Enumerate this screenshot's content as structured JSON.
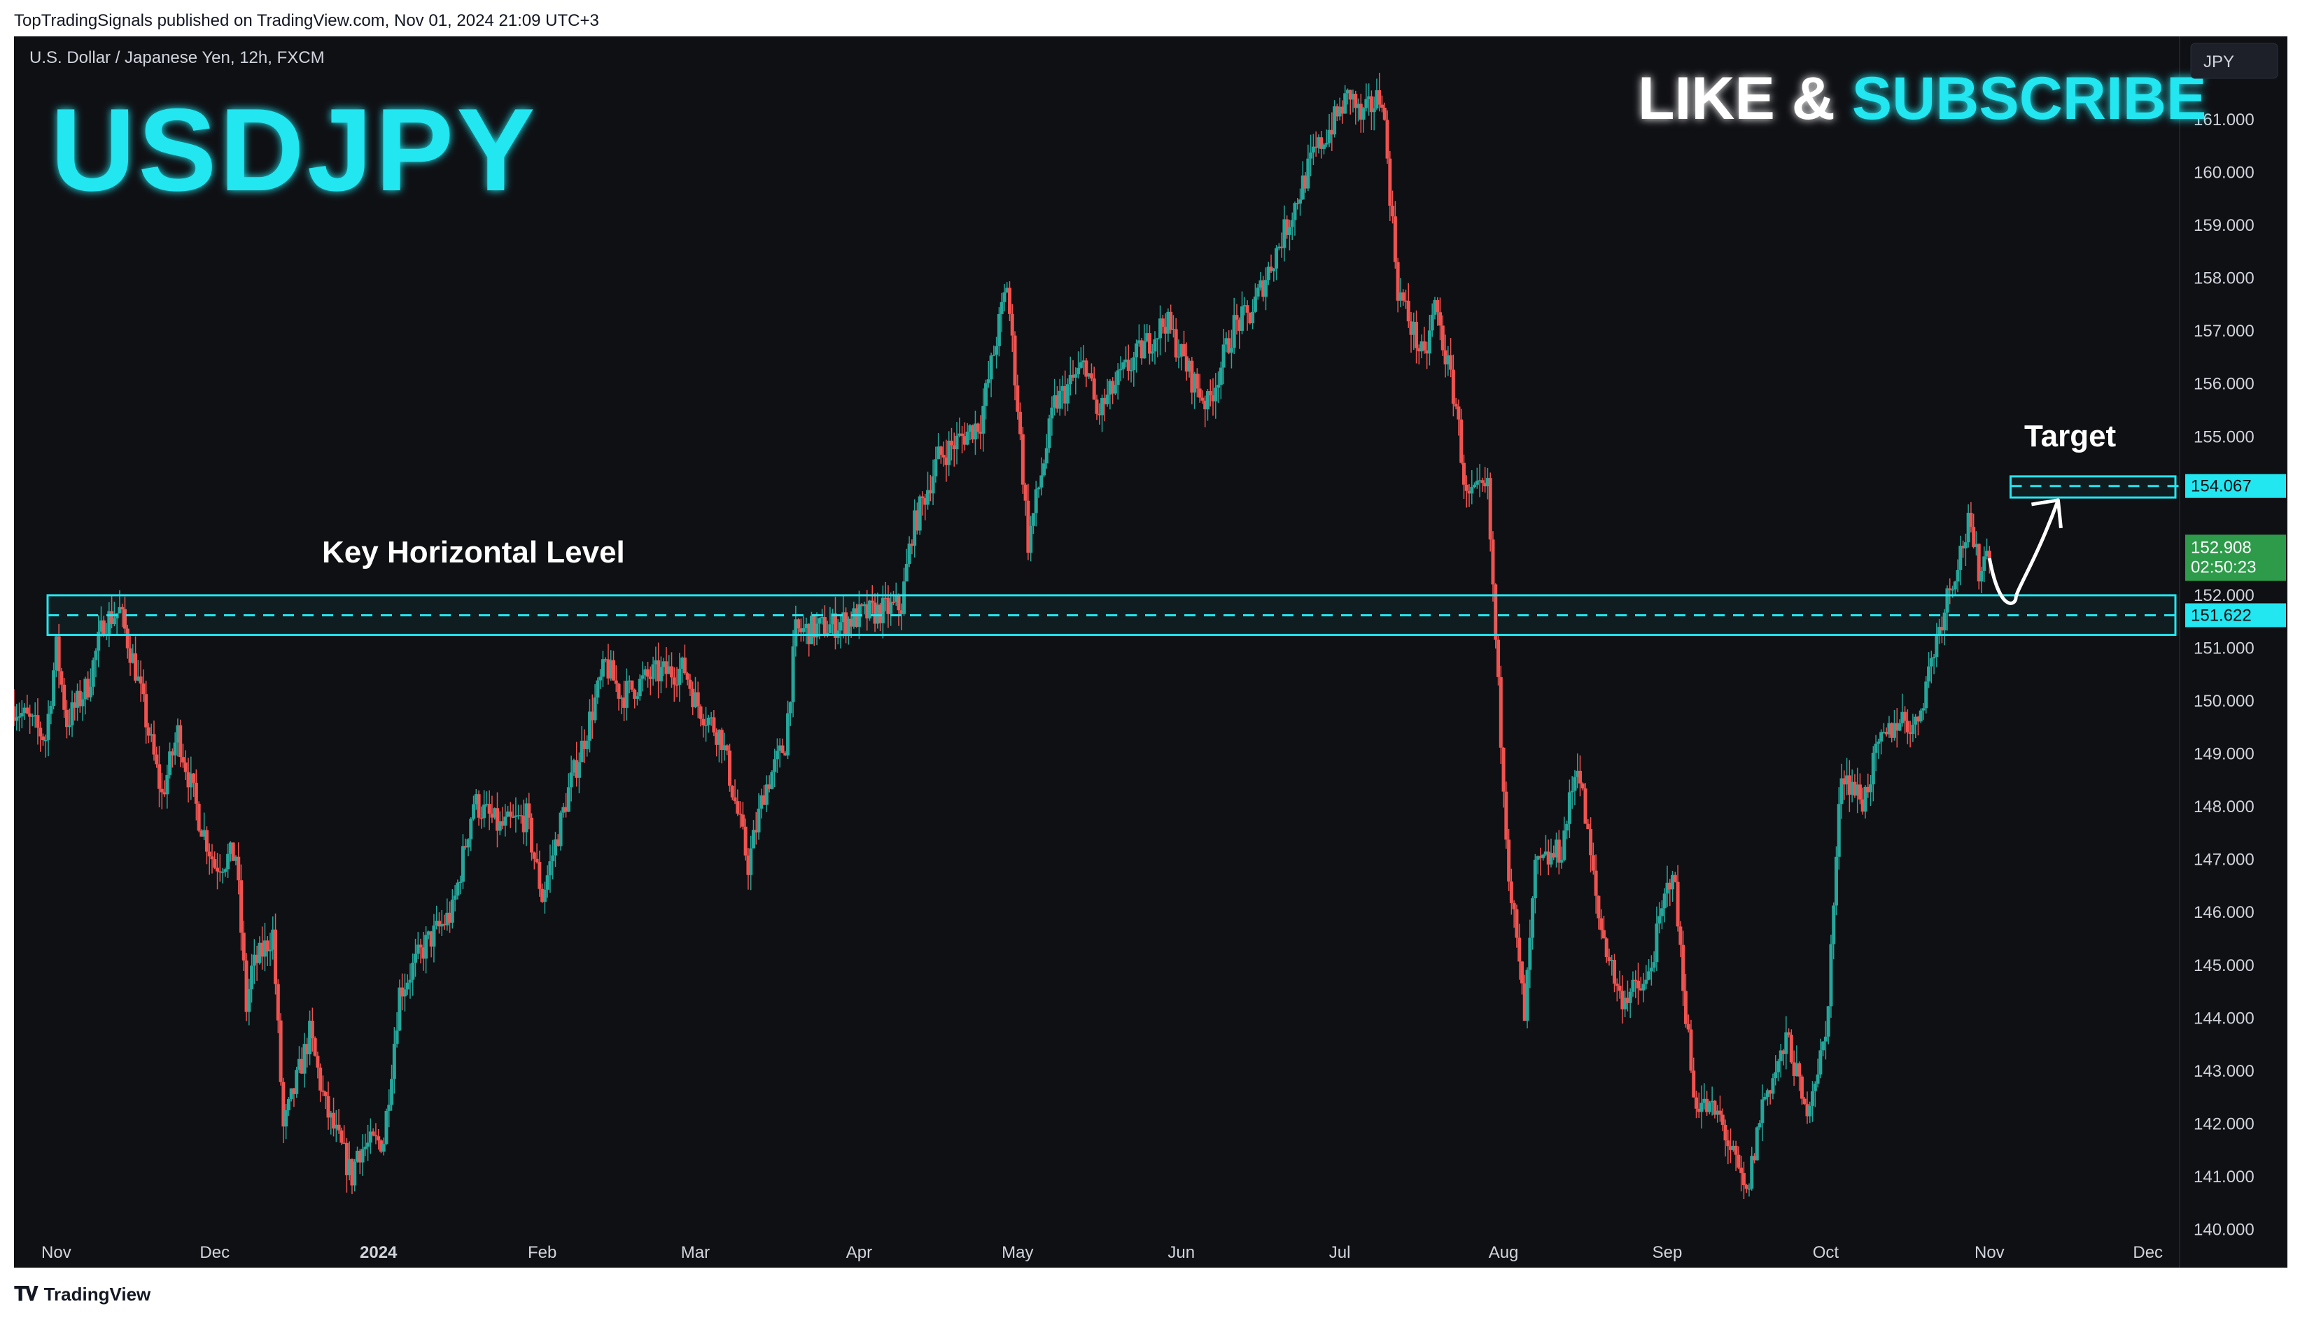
{
  "page": {
    "published_line": "TopTradingSignals published on TradingView.com, Nov 01, 2024 21:09 UTC+3",
    "footer_brand": "TradingView"
  },
  "chart_header": {
    "symbol_description": "U.S. Dollar / Japanese Yen, 12h, FXCM",
    "big_title": "USDJPY",
    "cta_part1": "LIKE & ",
    "cta_part2": "SUBSCRIBE",
    "currency_badge": "JPY"
  },
  "annotations": {
    "key_level_label": "Key Horizontal Level",
    "target_label": "Target"
  },
  "price_tags": {
    "current_price": "152.908",
    "countdown": "02:50:23",
    "target_price": "154.067",
    "key_level_price": "151.622"
  },
  "colors": {
    "background": "#0f1014",
    "up": "#26a69a",
    "down": "#ef5350",
    "accent_cyan": "#22e6f0",
    "current_price_tag": "#2e9b4a"
  },
  "chart_data": {
    "type": "candlestick",
    "title": "USDJPY",
    "subtitle": "U.S. Dollar / Japanese Yen, 12h, FXCM",
    "ylim": [
      139.6,
      162.0
    ],
    "y_ticks": [
      140,
      141,
      142,
      143,
      144,
      145,
      146,
      147,
      148,
      149,
      150,
      151,
      152,
      155,
      156,
      157,
      158,
      159,
      160,
      161
    ],
    "y_tick_labels": [
      "140.000",
      "141.000",
      "142.000",
      "143.000",
      "144.000",
      "145.000",
      "146.000",
      "147.000",
      "148.000",
      "149.000",
      "150.000",
      "151.000",
      "152.000",
      "155.000",
      "156.000",
      "157.000",
      "158.000",
      "159.000",
      "160.000",
      "161.000"
    ],
    "x_ticks": [
      "Nov",
      "Dec",
      "2024",
      "Feb",
      "Mar",
      "Apr",
      "May",
      "Jun",
      "Jul",
      "Aug",
      "Sep",
      "Oct",
      "Nov",
      "Dec"
    ],
    "x_tick_bold": [
      false,
      false,
      true,
      false,
      false,
      false,
      false,
      false,
      false,
      false,
      false,
      false,
      false,
      false
    ],
    "x_range": [
      "2023-10-24",
      "2024-12-07"
    ],
    "x_tick_dates": [
      "2023-11-01",
      "2023-12-01",
      "2024-01-01",
      "2024-02-01",
      "2024-03-01",
      "2024-04-01",
      "2024-05-01",
      "2024-06-01",
      "2024-07-01",
      "2024-08-01",
      "2024-09-01",
      "2024-10-01",
      "2024-11-01",
      "2024-12-01"
    ],
    "key_level": 151.622,
    "key_zone": [
      151.25,
      152.0
    ],
    "target_level": 154.067,
    "target_zone": [
      153.85,
      154.25
    ],
    "last_price": 152.908,
    "projection": [
      {
        "date": "2024-11-01",
        "price": 152.7
      },
      {
        "date": "2024-11-03",
        "price": 151.9
      },
      {
        "date": "2024-11-06",
        "price": 151.95
      },
      {
        "date": "2024-11-10",
        "price": 152.7
      },
      {
        "date": "2024-11-14",
        "price": 153.8
      }
    ],
    "close_path": [
      {
        "date": "2023-10-24",
        "close": 149.9
      },
      {
        "date": "2023-10-30",
        "close": 149.3
      },
      {
        "date": "2023-11-01",
        "close": 151.0
      },
      {
        "date": "2023-11-03",
        "close": 149.6
      },
      {
        "date": "2023-11-07",
        "close": 150.3
      },
      {
        "date": "2023-11-10",
        "close": 151.5
      },
      {
        "date": "2023-11-13",
        "close": 151.7
      },
      {
        "date": "2023-11-16",
        "close": 150.6
      },
      {
        "date": "2023-11-21",
        "close": 148.2
      },
      {
        "date": "2023-11-24",
        "close": 149.4
      },
      {
        "date": "2023-11-28",
        "close": 147.8
      },
      {
        "date": "2023-12-01",
        "close": 146.9
      },
      {
        "date": "2023-12-05",
        "close": 147.1
      },
      {
        "date": "2023-12-07",
        "close": 144.2
      },
      {
        "date": "2023-12-08",
        "close": 144.9
      },
      {
        "date": "2023-12-12",
        "close": 145.6
      },
      {
        "date": "2023-12-14",
        "close": 141.9
      },
      {
        "date": "2023-12-19",
        "close": 143.7
      },
      {
        "date": "2023-12-22",
        "close": 142.3
      },
      {
        "date": "2023-12-27",
        "close": 141.0
      },
      {
        "date": "2023-12-28",
        "close": 141.5
      },
      {
        "date": "2024-01-02",
        "close": 141.7
      },
      {
        "date": "2024-01-05",
        "close": 144.5
      },
      {
        "date": "2024-01-10",
        "close": 145.4
      },
      {
        "date": "2024-01-15",
        "close": 146.0
      },
      {
        "date": "2024-01-19",
        "close": 148.1
      },
      {
        "date": "2024-01-24",
        "close": 147.6
      },
      {
        "date": "2024-01-29",
        "close": 147.8
      },
      {
        "date": "2024-02-01",
        "close": 146.3
      },
      {
        "date": "2024-02-06",
        "close": 148.3
      },
      {
        "date": "2024-02-09",
        "close": 149.3
      },
      {
        "date": "2024-02-13",
        "close": 150.7
      },
      {
        "date": "2024-02-16",
        "close": 150.1
      },
      {
        "date": "2024-02-22",
        "close": 150.5
      },
      {
        "date": "2024-02-28",
        "close": 150.6
      },
      {
        "date": "2024-03-01",
        "close": 150.0
      },
      {
        "date": "2024-03-06",
        "close": 149.3
      },
      {
        "date": "2024-03-11",
        "close": 146.9
      },
      {
        "date": "2024-03-14",
        "close": 148.3
      },
      {
        "date": "2024-03-18",
        "close": 149.2
      },
      {
        "date": "2024-03-20",
        "close": 151.3
      },
      {
        "date": "2024-03-26",
        "close": 151.4
      },
      {
        "date": "2024-04-01",
        "close": 151.6
      },
      {
        "date": "2024-04-09",
        "close": 151.8
      },
      {
        "date": "2024-04-11",
        "close": 153.2
      },
      {
        "date": "2024-04-16",
        "close": 154.6
      },
      {
        "date": "2024-04-24",
        "close": 155.3
      },
      {
        "date": "2024-04-29",
        "close": 157.9
      },
      {
        "date": "2024-05-01",
        "close": 155.6
      },
      {
        "date": "2024-05-03",
        "close": 153.0
      },
      {
        "date": "2024-05-08",
        "close": 155.6
      },
      {
        "date": "2024-05-14",
        "close": 156.4
      },
      {
        "date": "2024-05-16",
        "close": 155.4
      },
      {
        "date": "2024-05-21",
        "close": 156.2
      },
      {
        "date": "2024-05-29",
        "close": 157.2
      },
      {
        "date": "2024-06-03",
        "close": 156.1
      },
      {
        "date": "2024-06-06",
        "close": 155.6
      },
      {
        "date": "2024-06-11",
        "close": 157.1
      },
      {
        "date": "2024-06-14",
        "close": 157.3
      },
      {
        "date": "2024-06-21",
        "close": 159.0
      },
      {
        "date": "2024-06-26",
        "close": 160.3
      },
      {
        "date": "2024-07-03",
        "close": 161.5
      },
      {
        "date": "2024-07-05",
        "close": 161.0
      },
      {
        "date": "2024-07-09",
        "close": 161.5
      },
      {
        "date": "2024-07-11",
        "close": 159.0
      },
      {
        "date": "2024-07-12",
        "close": 157.8
      },
      {
        "date": "2024-07-17",
        "close": 156.4
      },
      {
        "date": "2024-07-19",
        "close": 157.5
      },
      {
        "date": "2024-07-23",
        "close": 155.6
      },
      {
        "date": "2024-07-25",
        "close": 153.8
      },
      {
        "date": "2024-07-29",
        "close": 154.0
      },
      {
        "date": "2024-07-31",
        "close": 150.2
      },
      {
        "date": "2024-08-02",
        "close": 146.8
      },
      {
        "date": "2024-08-05",
        "close": 144.0
      },
      {
        "date": "2024-08-07",
        "close": 146.8
      },
      {
        "date": "2024-08-12",
        "close": 147.2
      },
      {
        "date": "2024-08-15",
        "close": 148.9
      },
      {
        "date": "2024-08-19",
        "close": 145.9
      },
      {
        "date": "2024-08-23",
        "close": 144.4
      },
      {
        "date": "2024-08-28",
        "close": 144.6
      },
      {
        "date": "2024-09-02",
        "close": 146.9
      },
      {
        "date": "2024-09-06",
        "close": 142.5
      },
      {
        "date": "2024-09-11",
        "close": 142.1
      },
      {
        "date": "2024-09-16",
        "close": 140.6
      },
      {
        "date": "2024-09-19",
        "close": 142.4
      },
      {
        "date": "2024-09-24",
        "close": 143.6
      },
      {
        "date": "2024-09-27",
        "close": 142.2
      },
      {
        "date": "2024-10-01",
        "close": 143.6
      },
      {
        "date": "2024-10-04",
        "close": 148.7
      },
      {
        "date": "2024-10-08",
        "close": 148.1
      },
      {
        "date": "2024-10-11",
        "close": 149.1
      },
      {
        "date": "2024-10-15",
        "close": 149.7
      },
      {
        "date": "2024-10-18",
        "close": 149.5
      },
      {
        "date": "2024-10-22",
        "close": 151.2
      },
      {
        "date": "2024-10-24",
        "close": 152.0
      },
      {
        "date": "2024-10-28",
        "close": 153.3
      },
      {
        "date": "2024-10-30",
        "close": 152.5
      },
      {
        "date": "2024-11-01",
        "close": 152.908
      }
    ]
  }
}
